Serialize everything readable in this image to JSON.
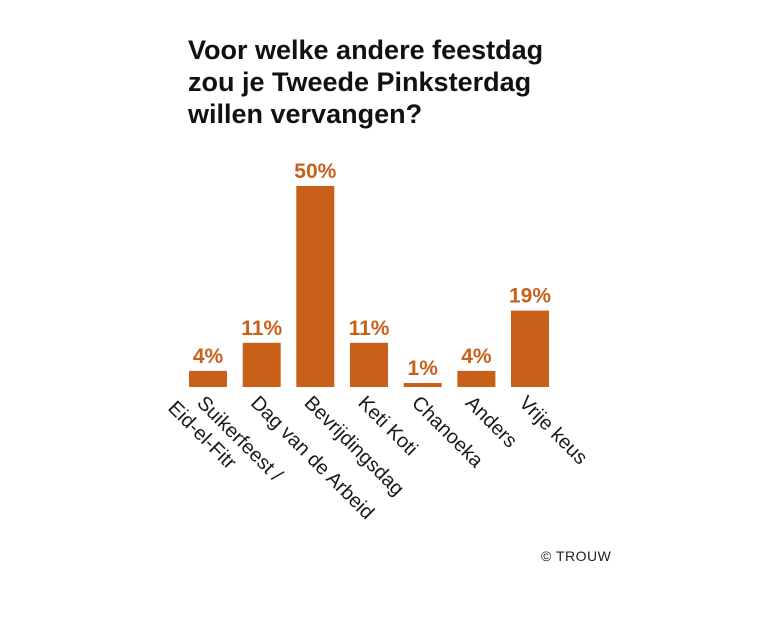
{
  "chart_data": {
    "type": "bar",
    "title_lines": [
      "Voor welke andere feestdag",
      "zou je Tweede Pinksterdag",
      "willen vervangen?"
    ],
    "categories": [
      [
        "Suikerfeest /",
        "Eid-el-Fitr"
      ],
      [
        "Dag van de Arbeid"
      ],
      [
        "Bevrijdingsdag"
      ],
      [
        "Keti Koti"
      ],
      [
        "Chanoeka"
      ],
      [
        "Anders"
      ],
      [
        "Vrije keus"
      ]
    ],
    "values": [
      4,
      11,
      50,
      11,
      1,
      4,
      19
    ],
    "value_labels": [
      "4%",
      "11%",
      "50%",
      "11%",
      "1%",
      "4%",
      "19%"
    ],
    "unit": "%",
    "ylim": [
      0,
      50
    ],
    "grid": false,
    "legend": "none",
    "bar_color": "#C8601A",
    "label_color": "#C8601A"
  },
  "credit": "© TROUW"
}
